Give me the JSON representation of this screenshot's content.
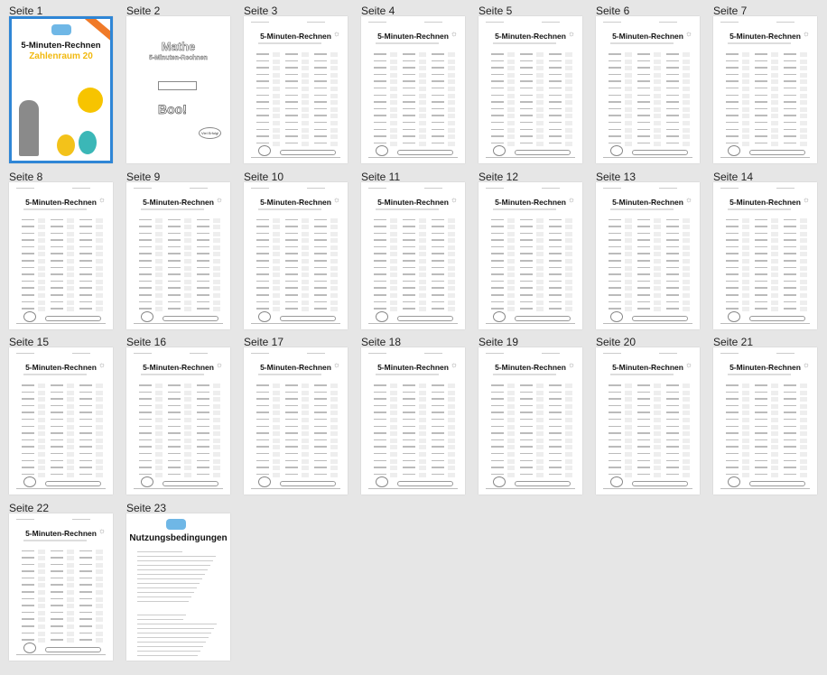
{
  "pages": [
    {
      "label": "Seite 1",
      "type": "cover",
      "selected": true
    },
    {
      "label": "Seite 2",
      "type": "intro"
    },
    {
      "label": "Seite 3",
      "type": "worksheet"
    },
    {
      "label": "Seite 4",
      "type": "worksheet"
    },
    {
      "label": "Seite 5",
      "type": "worksheet"
    },
    {
      "label": "Seite 6",
      "type": "worksheet"
    },
    {
      "label": "Seite 7",
      "type": "worksheet"
    },
    {
      "label": "Seite 8",
      "type": "worksheet"
    },
    {
      "label": "Seite 9",
      "type": "worksheet"
    },
    {
      "label": "Seite 10",
      "type": "worksheet"
    },
    {
      "label": "Seite 11",
      "type": "worksheet"
    },
    {
      "label": "Seite 12",
      "type": "worksheet"
    },
    {
      "label": "Seite 13",
      "type": "worksheet"
    },
    {
      "label": "Seite 14",
      "type": "worksheet"
    },
    {
      "label": "Seite 15",
      "type": "worksheet"
    },
    {
      "label": "Seite 16",
      "type": "worksheet"
    },
    {
      "label": "Seite 17",
      "type": "worksheet"
    },
    {
      "label": "Seite 18",
      "type": "worksheet"
    },
    {
      "label": "Seite 19",
      "type": "worksheet"
    },
    {
      "label": "Seite 20",
      "type": "worksheet"
    },
    {
      "label": "Seite 21",
      "type": "worksheet"
    },
    {
      "label": "Seite 22",
      "type": "worksheet"
    },
    {
      "label": "Seite 23",
      "type": "terms"
    }
  ],
  "cover": {
    "title": "5-Minuten-Rechnen",
    "subtitle": "Zahlenraum 20"
  },
  "intro": {
    "title": "Mathe",
    "subtitle": "5-Minuten-Rechnen",
    "boo": "Boo!",
    "bubble": "Viel Erfolg!"
  },
  "worksheet": {
    "title": "5-Minuten-Rechnen"
  },
  "terms": {
    "title": "Nutzungsbedingungen"
  },
  "colors": {
    "selection": "#2f86d6",
    "background": "#e6e6e6"
  }
}
